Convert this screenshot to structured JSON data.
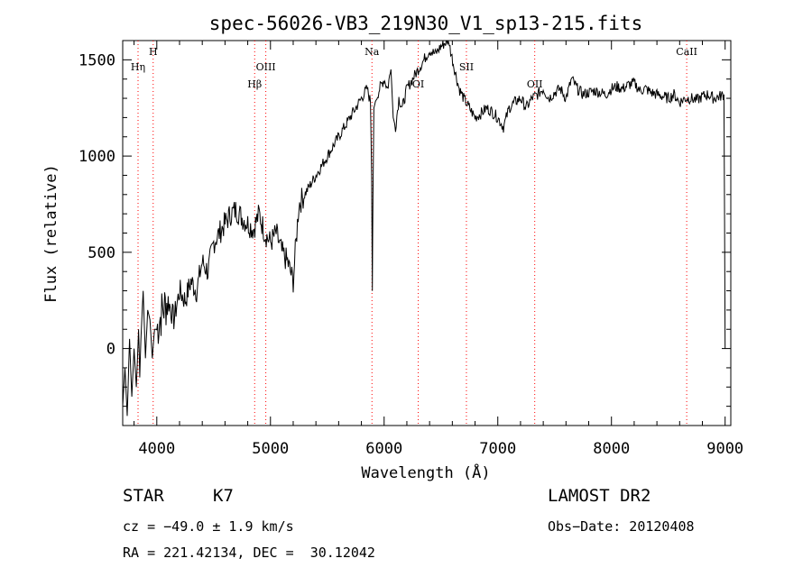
{
  "chart_data": {
    "type": "line",
    "title": "spec-56026-VB3_219N30_V1_sp13-215.fits",
    "xlabel": "Wavelength (Å)",
    "ylabel": "Flux (relative)",
    "xlim": [
      3700,
      9050
    ],
    "ylim": [
      -400,
      1600
    ],
    "xticks": [
      4000,
      5000,
      6000,
      7000,
      8000,
      9000
    ],
    "yticks": [
      0,
      500,
      1000,
      1500
    ],
    "line_color": "#000000",
    "marker_color": "#ff0000",
    "grid": false,
    "series": [
      {
        "x": [
          3700,
          3720,
          3740,
          3760,
          3780,
          3800,
          3820,
          3840,
          3850,
          3860,
          3880,
          3900,
          3920,
          3940,
          3960,
          3980,
          4000,
          4050,
          4100,
          4150,
          4200,
          4250,
          4300,
          4350,
          4400,
          4450,
          4500,
          4550,
          4600,
          4650,
          4700,
          4750,
          4800,
          4850,
          4900,
          4950,
          5000,
          5050,
          5100,
          5150,
          5200,
          5250,
          5300,
          5350,
          5400,
          5450,
          5500,
          5550,
          5600,
          5650,
          5700,
          5750,
          5800,
          5850,
          5880,
          5890,
          5896,
          5902,
          5910,
          5930,
          5960,
          6000,
          6030,
          6060,
          6080,
          6100,
          6130,
          6160,
          6200,
          6250,
          6300,
          6350,
          6400,
          6450,
          6500,
          6540,
          6563,
          6580,
          6620,
          6660,
          6700,
          6750,
          6800,
          6850,
          6900,
          6950,
          7000,
          7050,
          7100,
          7150,
          7200,
          7250,
          7300,
          7350,
          7400,
          7450,
          7500,
          7550,
          7600,
          7650,
          7700,
          7750,
          7800,
          7850,
          7900,
          7950,
          8000,
          8050,
          8100,
          8150,
          8200,
          8250,
          8300,
          8350,
          8400,
          8450,
          8500,
          8550,
          8600,
          8650,
          8700,
          8750,
          8800,
          8850,
          8900,
          8950,
          8990,
          9000
        ],
        "y": [
          -300,
          -100,
          -350,
          50,
          -250,
          0,
          -200,
          100,
          -150,
          50,
          300,
          -50,
          200,
          150,
          -50,
          100,
          100,
          200,
          250,
          150,
          300,
          250,
          350,
          300,
          450,
          400,
          550,
          600,
          650,
          700,
          720,
          680,
          650,
          620,
          700,
          600,
          550,
          600,
          500,
          450,
          350,
          750,
          800,
          850,
          900,
          950,
          1000,
          1050,
          1100,
          1150,
          1200,
          1250,
          1300,
          1350,
          1280,
          900,
          300,
          800,
          1250,
          1300,
          1350,
          1400,
          1350,
          1450,
          1200,
          1150,
          1300,
          1250,
          1350,
          1400,
          1450,
          1500,
          1550,
          1530,
          1570,
          1590,
          1600,
          1560,
          1450,
          1350,
          1300,
          1250,
          1200,
          1220,
          1250,
          1230,
          1200,
          1150,
          1250,
          1280,
          1300,
          1250,
          1300,
          1320,
          1350,
          1300,
          1330,
          1350,
          1300,
          1400,
          1350,
          1320,
          1330,
          1340,
          1330,
          1320,
          1350,
          1360,
          1350,
          1370,
          1380,
          1340,
          1350,
          1330,
          1320,
          1310,
          1300,
          1320,
          1280,
          1300,
          1300,
          1290,
          1310,
          1320,
          1300,
          1310,
          1320,
          0
        ]
      }
    ],
    "lines": [
      {
        "label": "Hη",
        "x": 3835
      },
      {
        "label": "H",
        "x": 3968
      },
      {
        "label": "Hβ",
        "x": 4861
      },
      {
        "label": "OIII",
        "x": 4959
      },
      {
        "label": "Na",
        "x": 5893
      },
      {
        "label": "OI",
        "x": 6300
      },
      {
        "label": "SII",
        "x": 6724
      },
      {
        "label": "OII",
        "x": 7325
      },
      {
        "label": "CaII",
        "x": 8662
      }
    ]
  },
  "info": {
    "object_type": "STAR",
    "subclass": "K7",
    "cz": "cz = −49.0 ± 1.9 km/s",
    "coords": "RA = 221.42134, DEC =  30.12042",
    "survey": "LAMOST DR2",
    "obs_date": "Obs−Date: 20120408"
  }
}
